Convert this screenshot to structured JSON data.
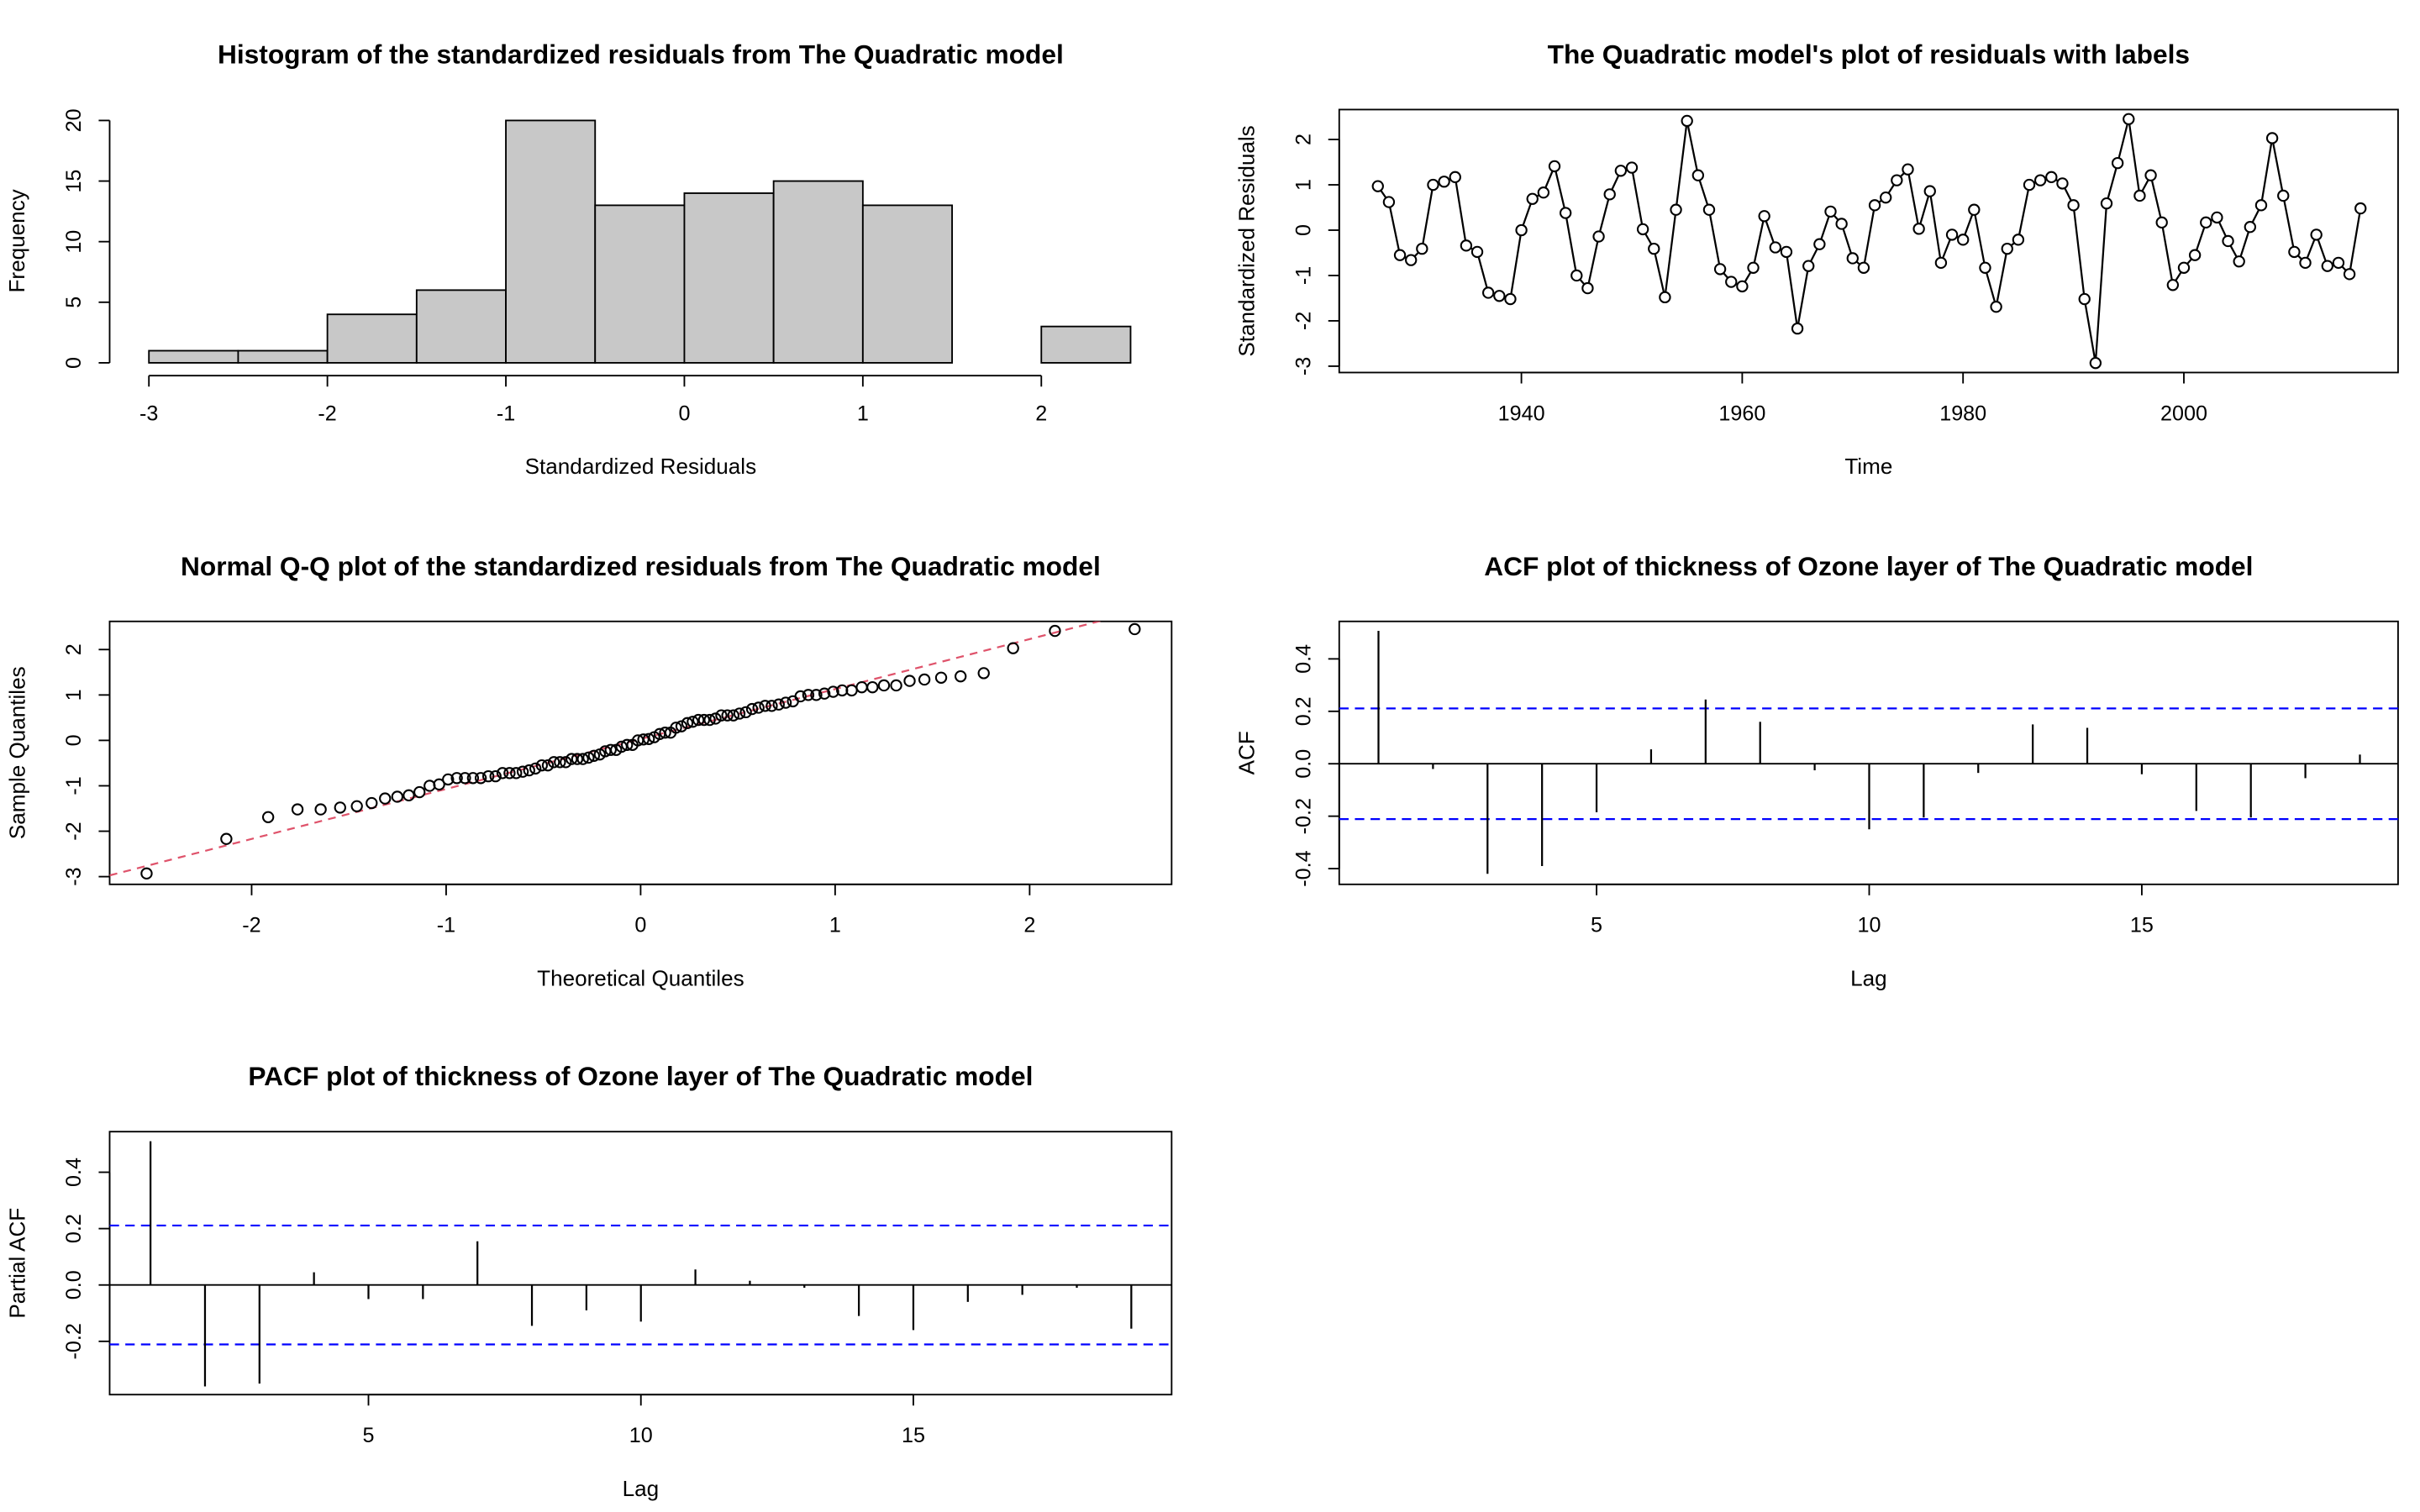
{
  "chart_data": [
    {
      "type": "histogram",
      "title": "Histogram of the standardized residuals from The Quadratic model",
      "xlabel": "Standardized Residuals",
      "ylabel": "Frequency",
      "bins": [
        -3,
        -2.5,
        -2,
        -1.5,
        -1,
        -0.5,
        0,
        0.5,
        1,
        1.5,
        2,
        2.5
      ],
      "values": [
        1,
        1,
        4,
        6,
        20,
        13,
        14,
        15,
        13,
        0,
        3
      ],
      "color": "#c8c8c8",
      "xlim": [
        -3.22,
        2.73
      ],
      "ylim": [
        -0.8,
        20.9
      ],
      "xticks": [
        -3,
        -2,
        -1,
        0,
        1,
        2
      ],
      "yticks": [
        0,
        5,
        10,
        15,
        20
      ]
    },
    {
      "type": "line",
      "title": "The Quadratic model's plot of residuals with labels",
      "xlabel": "Time",
      "ylabel": "Standardized Residuals",
      "x": [
        1927,
        1928,
        1929,
        1930,
        1931,
        1932,
        1933,
        1934,
        1935,
        1936,
        1937,
        1938,
        1939,
        1940,
        1941,
        1942,
        1943,
        1944,
        1945,
        1946,
        1947,
        1948,
        1949,
        1950,
        1951,
        1952,
        1953,
        1954,
        1955,
        1956,
        1957,
        1958,
        1959,
        1960,
        1961,
        1962,
        1963,
        1964,
        1965,
        1966,
        1967,
        1968,
        1969,
        1970,
        1971,
        1972,
        1973,
        1974,
        1975,
        1976,
        1977,
        1978,
        1979,
        1980,
        1981,
        1982,
        1983,
        1984,
        1985,
        1986,
        1987,
        1988,
        1989,
        1990,
        1991,
        1992,
        1993,
        1994,
        1995,
        1996,
        1997,
        1998,
        1999,
        2000,
        2001,
        2002,
        2003,
        2004,
        2005,
        2006,
        2007,
        2008,
        2009,
        2010,
        2011,
        2012,
        2013,
        2014,
        2015,
        2016
      ],
      "values": [
        0.97,
        0.62,
        -0.55,
        -0.66,
        -0.41,
        1.0,
        1.07,
        1.17,
        -0.34,
        -0.48,
        -1.38,
        -1.45,
        -1.52,
        0.0,
        0.69,
        0.83,
        1.41,
        0.38,
        -1.0,
        -1.28,
        -0.14,
        0.79,
        1.31,
        1.38,
        0.02,
        -0.41,
        -1.48,
        0.45,
        2.41,
        1.21,
        0.45,
        -0.86,
        -1.14,
        -1.24,
        -0.83,
        0.31,
        -0.38,
        -0.48,
        -2.17,
        -0.79,
        -0.31,
        0.41,
        0.14,
        -0.62,
        -0.83,
        0.55,
        0.72,
        1.1,
        1.34,
        0.03,
        0.86,
        -0.72,
        -0.1,
        -0.21,
        0.45,
        -0.83,
        -1.69,
        -0.41,
        -0.21,
        1.0,
        1.1,
        1.17,
        1.03,
        0.55,
        -1.52,
        -2.93,
        0.59,
        1.48,
        2.45,
        0.76,
        1.21,
        0.17,
        -1.21,
        -0.83,
        -0.55,
        0.17,
        0.28,
        -0.24,
        -0.69,
        0.07,
        0.55,
        2.03,
        0.76,
        -0.48,
        -0.72,
        -0.1,
        -0.79,
        -0.72,
        -0.97,
        0.48
      ],
      "color": "#000000",
      "xlim": [
        1923.5,
        2019.4
      ],
      "ylim": [
        -3.14,
        2.66
      ],
      "xticks": [
        1940,
        1960,
        1980,
        2000
      ],
      "yticks": [
        -3,
        -2,
        -1,
        0,
        1,
        2
      ]
    },
    {
      "type": "scatter",
      "title": "Normal Q-Q plot of the standardized residuals from The Quadratic model",
      "xlabel": "Theoretical Quantiles",
      "ylabel": "Sample Quantiles",
      "x": [
        -2.54,
        -2.13,
        -1.915,
        -1.764,
        -1.645,
        -1.545,
        -1.459,
        -1.383,
        -1.314,
        -1.251,
        -1.192,
        -1.137,
        -1.085,
        -1.036,
        -0.99,
        -0.945,
        -0.903,
        -0.862,
        -0.822,
        -0.783,
        -0.746,
        -0.71,
        -0.674,
        -0.64,
        -0.606,
        -0.573,
        -0.541,
        -0.508,
        -0.477,
        -0.446,
        -0.415,
        -0.385,
        -0.355,
        -0.326,
        -0.297,
        -0.268,
        -0.24,
        -0.21,
        -0.182,
        -0.154,
        -0.126,
        -0.098,
        -0.07,
        -0.042,
        -0.014,
        0.014,
        0.042,
        0.07,
        0.098,
        0.126,
        0.154,
        0.182,
        0.21,
        0.24,
        0.268,
        0.297,
        0.326,
        0.355,
        0.385,
        0.415,
        0.446,
        0.477,
        0.508,
        0.541,
        0.573,
        0.606,
        0.64,
        0.674,
        0.71,
        0.746,
        0.783,
        0.822,
        0.862,
        0.903,
        0.945,
        0.99,
        1.036,
        1.085,
        1.137,
        1.192,
        1.251,
        1.314,
        1.383,
        1.459,
        1.545,
        1.645,
        1.764,
        1.915,
        2.13,
        2.54
      ],
      "values": [
        -2.93,
        -2.17,
        -1.69,
        -1.52,
        -1.52,
        -1.48,
        -1.45,
        -1.38,
        -1.28,
        -1.24,
        -1.21,
        -1.14,
        -1.0,
        -0.97,
        -0.86,
        -0.83,
        -0.83,
        -0.83,
        -0.83,
        -0.79,
        -0.79,
        -0.72,
        -0.72,
        -0.72,
        -0.69,
        -0.66,
        -0.62,
        -0.55,
        -0.55,
        -0.48,
        -0.48,
        -0.48,
        -0.41,
        -0.41,
        -0.41,
        -0.38,
        -0.34,
        -0.31,
        -0.24,
        -0.21,
        -0.21,
        -0.14,
        -0.1,
        -0.1,
        0.0,
        0.02,
        0.03,
        0.07,
        0.14,
        0.17,
        0.17,
        0.28,
        0.31,
        0.38,
        0.41,
        0.45,
        0.45,
        0.45,
        0.48,
        0.55,
        0.55,
        0.55,
        0.59,
        0.62,
        0.69,
        0.72,
        0.76,
        0.76,
        0.79,
        0.83,
        0.86,
        0.97,
        1.0,
        1.0,
        1.03,
        1.07,
        1.1,
        1.1,
        1.17,
        1.17,
        1.21,
        1.21,
        1.31,
        1.34,
        1.38,
        1.41,
        1.48,
        2.03,
        2.41,
        2.45
      ],
      "color": "#000000",
      "reference_line": {
        "intercept": 0.03,
        "slope": 1.1,
        "color": "#DF536B"
      },
      "xlim": [
        -2.73,
        2.73
      ],
      "ylim": [
        -3.17,
        2.62
      ],
      "xticks": [
        -2,
        -1,
        0,
        1,
        2
      ],
      "yticks": [
        -3,
        -2,
        -1,
        0,
        1,
        2
      ]
    },
    {
      "type": "bar",
      "title": "ACF plot of thickness of Ozone layer of The Quadratic model",
      "xlabel": "Lag",
      "ylabel": "ACF",
      "x": [
        1,
        2,
        3,
        4,
        5,
        6,
        7,
        8,
        9,
        10,
        11,
        12,
        13,
        14,
        15,
        16,
        17,
        18,
        19
      ],
      "values": [
        0.507,
        -0.02,
        -0.42,
        -0.39,
        -0.185,
        0.055,
        0.245,
        0.16,
        -0.025,
        -0.25,
        -0.205,
        -0.035,
        0.15,
        0.137,
        -0.04,
        -0.18,
        -0.205,
        -0.055,
        0.035
      ],
      "color": "#000000",
      "confidence_bound": 0.211,
      "confidence_color": "#0000FF",
      "xlim": [
        0.28,
        19.7
      ],
      "ylim": [
        -0.46,
        0.543
      ],
      "xticks": [
        5,
        10,
        15
      ],
      "yticks": [
        -0.4,
        -0.2,
        {
          "value": 0,
          "label": "0.0"
        },
        0.2,
        0.4
      ]
    },
    {
      "type": "bar",
      "title": "PACF plot of thickness of Ozone layer of The Quadratic model",
      "xlabel": "Lag",
      "ylabel": "Partial ACF",
      "x": [
        1,
        2,
        3,
        4,
        5,
        6,
        7,
        8,
        9,
        10,
        11,
        12,
        13,
        14,
        15,
        16,
        17,
        18,
        19
      ],
      "values": [
        0.51,
        -0.36,
        -0.35,
        0.045,
        -0.05,
        -0.05,
        0.155,
        -0.145,
        -0.09,
        -0.13,
        0.055,
        0.015,
        -0.01,
        -0.11,
        -0.16,
        -0.06,
        -0.035,
        -0.01,
        -0.155
      ],
      "color": "#000000",
      "confidence_bound": 0.211,
      "confidence_color": "#0000FF",
      "xlim": [
        0.25,
        19.74
      ],
      "ylim": [
        -0.389,
        0.544
      ],
      "xticks": [
        5,
        10,
        15
      ],
      "yticks": [
        -0.2,
        {
          "value": 0,
          "label": "0.0"
        },
        0.2,
        0.4
      ]
    }
  ]
}
